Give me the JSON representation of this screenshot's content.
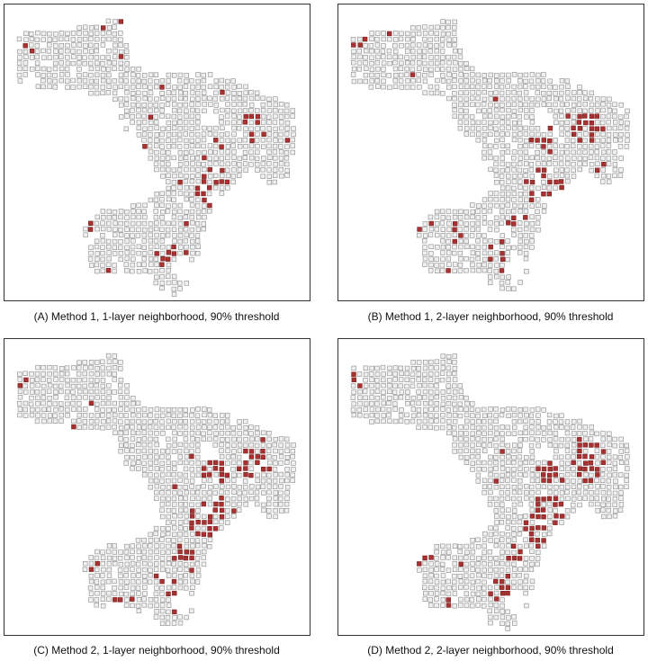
{
  "panels": [
    {
      "caption": "(A) Method 1, 1-layer neighborhood, 90% threshold"
    },
    {
      "caption": "(B) Method 1, 2-layer neighborhood, 90% threshold"
    },
    {
      "caption": "(C) Method 2, 1-layer neighborhood, 90% threshold"
    },
    {
      "caption": "(D) Method 2, 2-layer neighborhood, 90% threshold"
    }
  ]
}
